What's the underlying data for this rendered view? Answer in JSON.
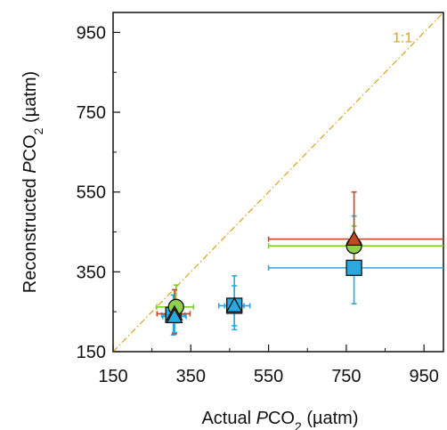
{
  "chart_data": {
    "type": "scatter",
    "xlim": [
      150,
      1000
    ],
    "ylim": [
      150,
      1000
    ],
    "x_ticks": [
      150,
      350,
      550,
      750,
      950
    ],
    "y_ticks": [
      150,
      350,
      550,
      750,
      950
    ],
    "x_tick_labels": [
      "150",
      "350",
      "550",
      "750",
      "950"
    ],
    "y_tick_labels": [
      "150",
      "350",
      "550",
      "750",
      "950"
    ],
    "xlabel": {
      "pre": "Actual ",
      "italic": "P",
      "mid": "CO",
      "sub": "2",
      "post": " (µatm)"
    },
    "ylabel": {
      "pre": "Reconstructed ",
      "italic": "P",
      "mid": "CO",
      "sub": "2",
      "post": " (µatm)"
    },
    "reference_line": {
      "label": "1:1",
      "color": "#d9a21b",
      "style": "dash-dot"
    },
    "grid": false,
    "series": [
      {
        "marker": "square",
        "fill": "#2aa8e0",
        "err_color": "#2aa8e0",
        "points": [
          {
            "x": 305,
            "y": 242,
            "xerr": [
              30,
              30
            ],
            "yerr": [
              50,
              50
            ]
          },
          {
            "x": 462,
            "y": 265,
            "xerr": [
              40,
              40
            ],
            "yerr": [
              60,
              75
            ]
          },
          {
            "x": 770,
            "y": 360,
            "xerr": [
              220,
              230
            ],
            "yerr": [
              90,
              130
            ]
          }
        ]
      },
      {
        "marker": "circle",
        "fill": "#8fd14f",
        "err_color": "#7ed321",
        "points": [
          {
            "x": 312,
            "y": 262,
            "xerr": [
              50,
              45
            ],
            "yerr": [
              40,
              55
            ]
          },
          {
            "x": 770,
            "y": 415,
            "xerr": [
              220,
              230
            ],
            "yerr": [
              60,
              50
            ]
          }
        ]
      },
      {
        "marker": "triangle",
        "fill": "#c8481e",
        "err_color": "#c8481e",
        "points": [
          {
            "x": 308,
            "y": 245,
            "xerr": [
              45,
              40
            ],
            "yerr": [
              50,
              60
            ]
          },
          {
            "x": 770,
            "y": 432,
            "xerr": [
              220,
              230
            ],
            "yerr": [
              70,
              118
            ]
          }
        ]
      },
      {
        "marker": "triangle",
        "fill": "#2aa8e0",
        "err_color": "#2aa8e0",
        "points": [
          {
            "x": 308,
            "y": 238,
            "xerr": [
              30,
              30
            ],
            "yerr": [
              40,
              40
            ]
          },
          {
            "x": 462,
            "y": 265,
            "xerr": [
              25,
              25
            ],
            "yerr": [
              50,
              50
            ]
          }
        ]
      }
    ]
  }
}
